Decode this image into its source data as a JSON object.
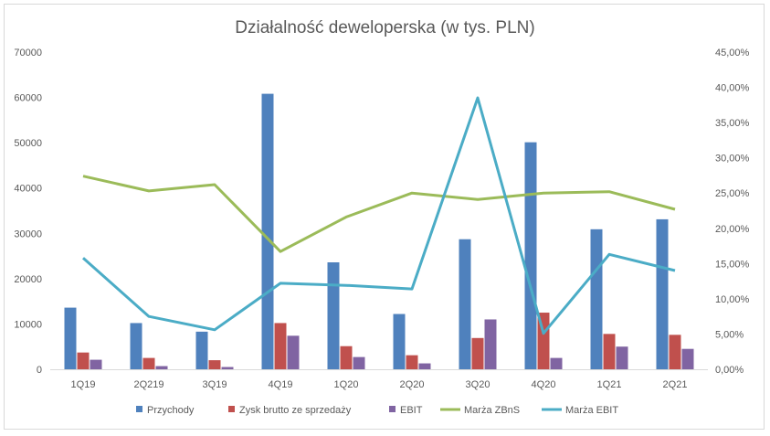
{
  "chart_data": {
    "type": "bar",
    "title": "Działalność deweloperska (w tys. PLN)",
    "categories": [
      "1Q19",
      "2Q219",
      "3Q19",
      "4Q19",
      "1Q20",
      "2Q20",
      "3Q20",
      "4Q20",
      "1Q21",
      "2Q21"
    ],
    "y_left": {
      "ylim": [
        0,
        70000
      ],
      "ticks": [
        "0",
        "10000",
        "20000",
        "30000",
        "40000",
        "50000",
        "60000",
        "70000"
      ]
    },
    "y_right": {
      "ylim": [
        0,
        45
      ],
      "ticks": [
        "0,00%",
        "5,00%",
        "10,00%",
        "15,00%",
        "20,00%",
        "25,00%",
        "30,00%",
        "35,00%",
        "40,00%",
        "45,00%"
      ]
    },
    "series": [
      {
        "name": "Przychody",
        "type": "bar",
        "axis": "left",
        "color": "#4f81bd",
        "values": [
          13600,
          10200,
          8300,
          60800,
          23600,
          12200,
          28700,
          50100,
          30900,
          33100
        ]
      },
      {
        "name": "Zysk brutto ze sprzedaży",
        "type": "bar",
        "axis": "left",
        "color": "#c0504d",
        "values": [
          3700,
          2500,
          2000,
          10200,
          5100,
          3100,
          6900,
          12500,
          7800,
          7600
        ]
      },
      {
        "name": "EBIT",
        "type": "bar",
        "axis": "left",
        "color": "#8064a2",
        "values": [
          2100,
          700,
          500,
          7400,
          2700,
          1300,
          11000,
          2500,
          5000,
          4500
        ]
      },
      {
        "name": "Marża ZBnS",
        "type": "line",
        "axis": "right",
        "color": "#9bbb59",
        "values": [
          27.4,
          25.3,
          26.2,
          16.7,
          21.6,
          25.0,
          24.1,
          25.0,
          25.2,
          22.7
        ]
      },
      {
        "name": "Marża EBIT",
        "type": "line",
        "axis": "right",
        "color": "#4bacc6",
        "values": [
          15.8,
          7.5,
          5.6,
          12.2,
          11.9,
          11.4,
          38.5,
          5.1,
          16.3,
          14.0
        ]
      }
    ],
    "grid": false,
    "legend": "bottom"
  }
}
